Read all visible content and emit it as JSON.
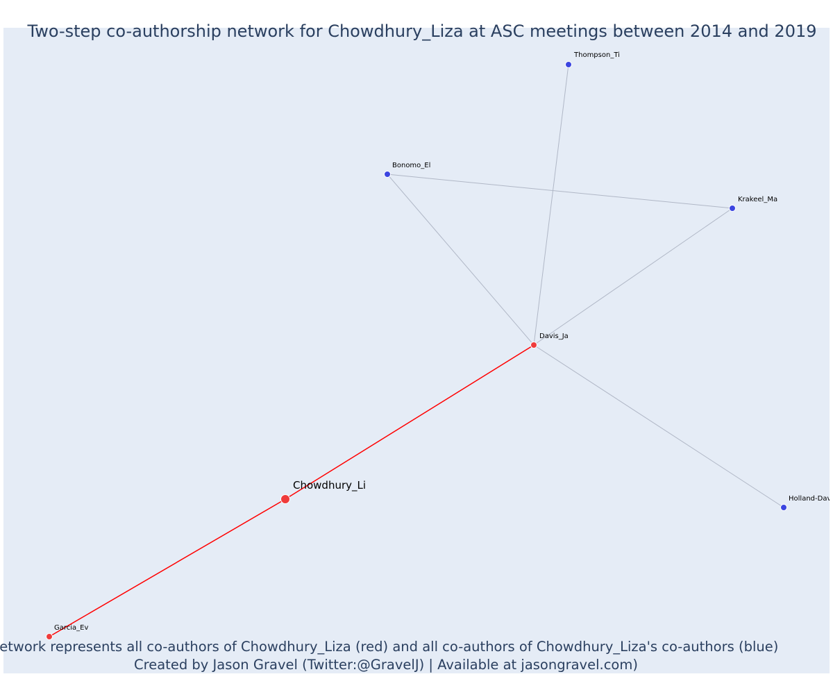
{
  "title": "Two-step co-authorship network for Chowdhury_Liza at ASC meetings between 2014 and 2019",
  "footer": {
    "line1": "Network represents all co-authors of Chowdhury_Liza (red) and all co-authors of Chowdhury_Liza's co-authors (blue)",
    "line2": "Created by Jason Gravel (Twitter:@GravelJ) | Available at jasongravel.com)"
  },
  "colors": {
    "background": "#e5ecf6",
    "title": "#2a3f5f",
    "first_degree": "#ef3b3b",
    "second_degree": "#3b45e0",
    "first_degree_edge": "#ff0000",
    "second_degree_edge": "#b0b7c6"
  },
  "nodes": [
    {
      "id": "chowdhury",
      "label": "Chowdhury_Li",
      "group": "center"
    },
    {
      "id": "davis",
      "label": "Davis_Ja",
      "group": "first"
    },
    {
      "id": "garcia",
      "label": "Garcia_Ev",
      "group": "first"
    },
    {
      "id": "thompson",
      "label": "Thompson_Ti",
      "group": "second"
    },
    {
      "id": "bonomo",
      "label": "Bonomo_El",
      "group": "second"
    },
    {
      "id": "krakeel",
      "label": "Krakeel_Ma",
      "group": "second"
    },
    {
      "id": "holland",
      "label": "Holland-Davi",
      "group": "second"
    }
  ],
  "edges": [
    {
      "source": "chowdhury",
      "target": "davis",
      "type": "first"
    },
    {
      "source": "chowdhury",
      "target": "garcia",
      "type": "first"
    },
    {
      "source": "davis",
      "target": "thompson",
      "type": "second"
    },
    {
      "source": "davis",
      "target": "bonomo",
      "type": "second"
    },
    {
      "source": "davis",
      "target": "krakeel",
      "type": "second"
    },
    {
      "source": "davis",
      "target": "holland",
      "type": "second"
    },
    {
      "source": "bonomo",
      "target": "krakeel",
      "type": "second"
    }
  ]
}
